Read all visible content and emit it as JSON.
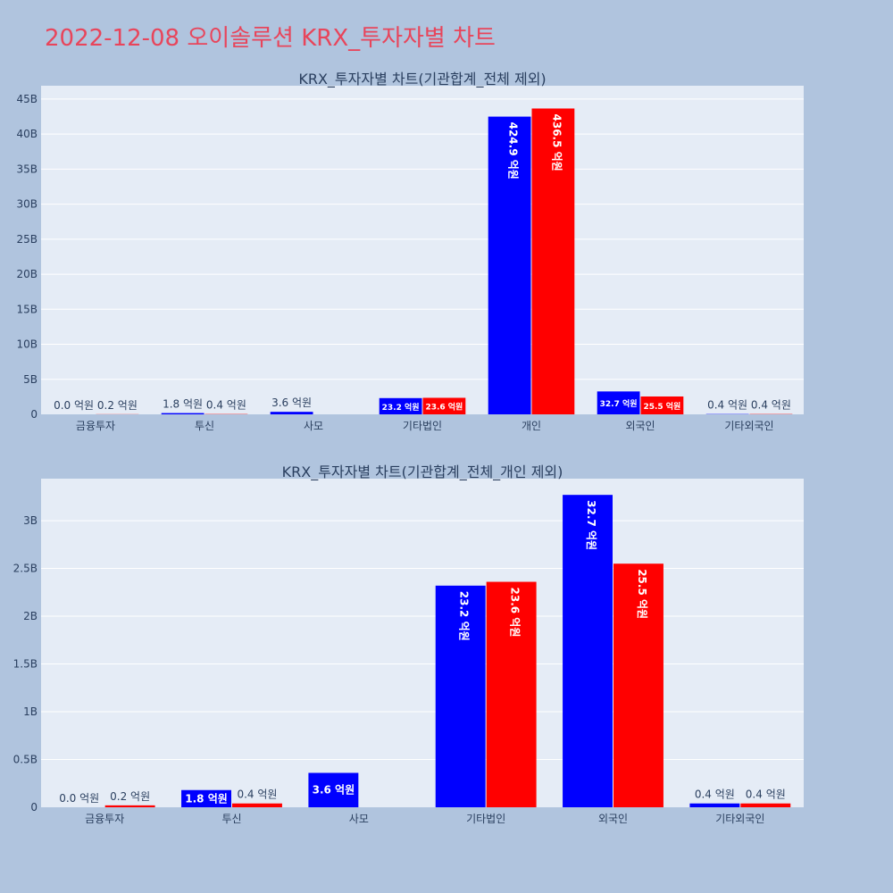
{
  "page": {
    "title": "2022-12-08 오이솔루션 KRX_투자자별 차트"
  },
  "colors": {
    "series_1": "#0000ff",
    "series_2": "#ff0000",
    "plot_bg": "#e5ecf6",
    "page_bg": "#b0c4de",
    "title": "#e8455b"
  },
  "chart_data": [
    {
      "type": "bar",
      "title": "KRX_투자자별 차트(기관합계_전체 제외)",
      "categories": [
        "금융투자",
        "투신",
        "사모",
        "기타법인",
        "개인",
        "외국인",
        "기타외국인"
      ],
      "series": [
        {
          "values": [
            0.0,
            0.18,
            0.36,
            2.32,
            42.49,
            3.27,
            0.04
          ],
          "labels": [
            "0.0 억원",
            "1.8 억원",
            "3.6 억원",
            "23.2 억원",
            "424.9 억원",
            "32.7 억원",
            "0.4 억원"
          ]
        },
        {
          "values": [
            0.02,
            0.04,
            0,
            2.36,
            43.65,
            2.55,
            0.04
          ],
          "labels": [
            "0.2 억원",
            "0.4 억원",
            "",
            "23.6 억원",
            "436.5 억원",
            "25.5 억원",
            "0.4 억원"
          ]
        }
      ],
      "yticks": [
        "0",
        "5B",
        "10B",
        "15B",
        "20B",
        "25B",
        "30B",
        "35B",
        "40B",
        "45B"
      ],
      "ylim": [
        0,
        46.9
      ],
      "grid": true
    },
    {
      "type": "bar",
      "title": "KRX_투자자별 차트(기관합계_전체_개인 제외)",
      "categories": [
        "금융투자",
        "투신",
        "사모",
        "기타법인",
        "외국인",
        "기타외국인"
      ],
      "series": [
        {
          "values": [
            0.0,
            0.18,
            0.36,
            2.32,
            3.27,
            0.04
          ],
          "labels": [
            "0.0 억원",
            "1.8 억원",
            "3.6 억원",
            "23.2 억원",
            "32.7 억원",
            "0.4 억원"
          ]
        },
        {
          "values": [
            0.02,
            0.04,
            0,
            2.36,
            2.55,
            0.04
          ],
          "labels": [
            "0.2 억원",
            "0.4 억원",
            "",
            "23.6 억원",
            "25.5 억원",
            "0.4 억원"
          ]
        }
      ],
      "yticks": [
        "0",
        "0.5B",
        "1B",
        "1.5B",
        "2B",
        "2.5B",
        "3B"
      ],
      "ylim": [
        0,
        3.44
      ],
      "grid": true
    }
  ]
}
